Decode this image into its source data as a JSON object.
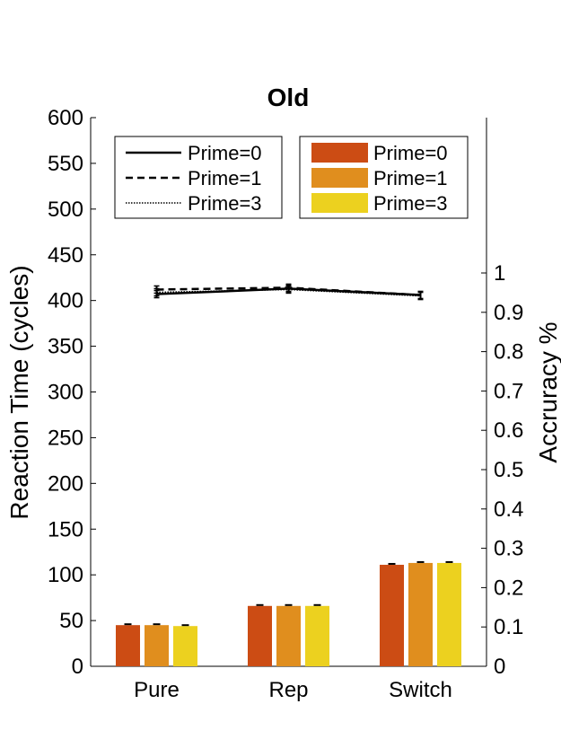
{
  "chart_data": {
    "type": "bar",
    "title": "Old",
    "categories": [
      "Pure",
      "Rep",
      "Switch"
    ],
    "ylabel": "Reaction Time (cycles)",
    "ylim": [
      0,
      600
    ],
    "yticks": [
      "0",
      "50",
      "100",
      "150",
      "200",
      "250",
      "300",
      "350",
      "400",
      "450",
      "500",
      "550",
      "600"
    ],
    "y2label": "Accruracy %",
    "y2ticks": [
      "0",
      "0.1",
      "0.2",
      "0.3",
      "0.4",
      "0.5",
      "0.6",
      "0.7",
      "0.8",
      "0.9",
      "1"
    ],
    "bar_legend_placement": "top-right",
    "line_legend_placement": "top-left",
    "series": [
      {
        "name": "Prime=0",
        "kind": "bar",
        "color": "#cc4c14",
        "values": [
          45,
          66,
          111
        ]
      },
      {
        "name": "Prime=1",
        "kind": "bar",
        "color": "#e08e1e",
        "values": [
          45,
          66,
          113
        ]
      },
      {
        "name": "Prime=3",
        "kind": "bar",
        "color": "#ecd11f",
        "values": [
          44,
          66,
          113
        ]
      },
      {
        "name": "Prime=0",
        "kind": "line",
        "style": "solid",
        "values": [
          407,
          413,
          406
        ]
      },
      {
        "name": "Prime=1",
        "kind": "line",
        "style": "dashed",
        "values": [
          412,
          414,
          406
        ]
      },
      {
        "name": "Prime=3",
        "kind": "line",
        "style": "dotted",
        "values": [
          409,
          412,
          405
        ]
      }
    ]
  }
}
